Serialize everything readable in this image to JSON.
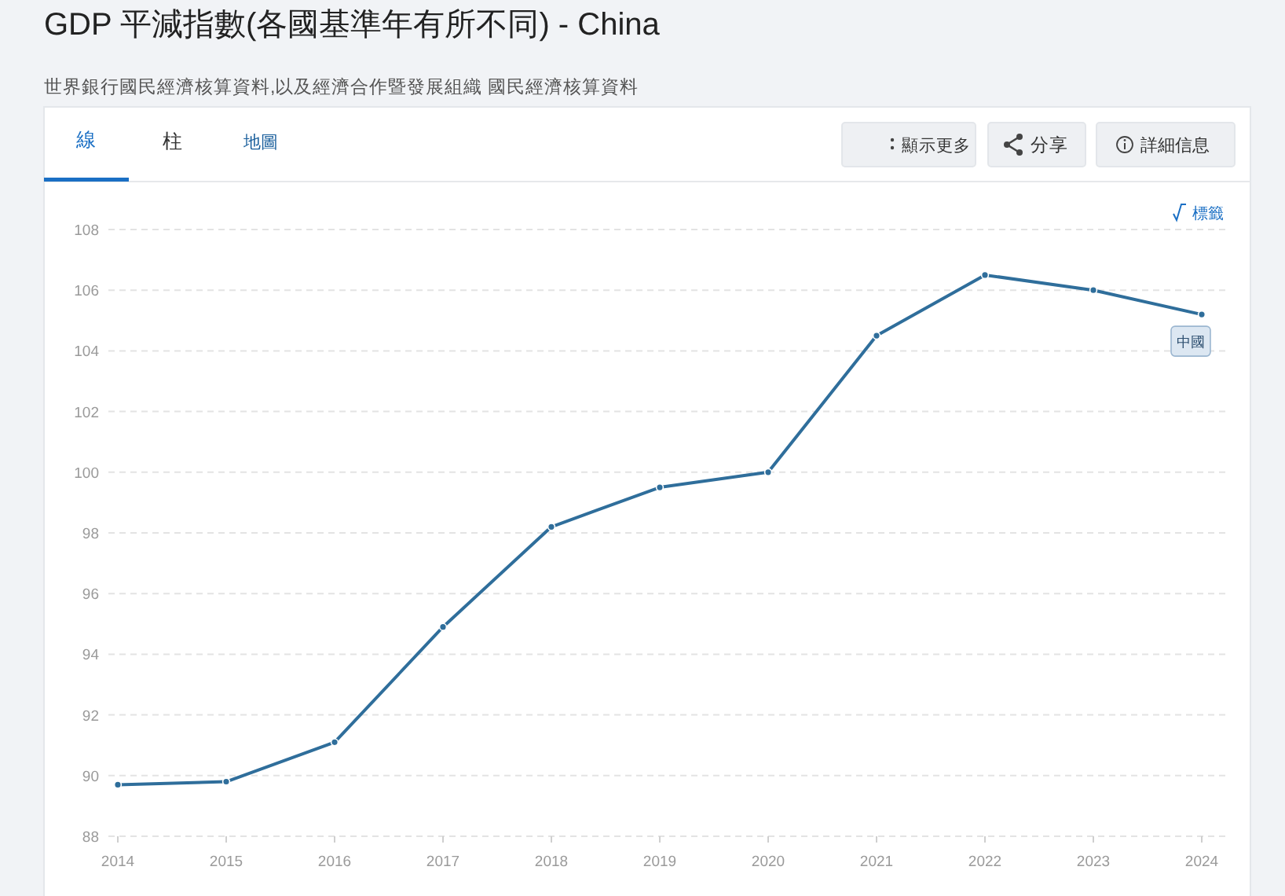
{
  "chart_data": {
    "type": "line",
    "title": "GDP 平減指數(各國基準年有所不同) - China",
    "subtitle": "世界銀行國民經濟核算資料,以及經濟合作暨發展組織 國民經濟核算資料",
    "annotations": [
      "線",
      "柱",
      "地圖",
      "顯示更多",
      "分享",
      "詳細信息",
      "標籤"
    ],
    "categories": [
      "2014",
      "2015",
      "2016",
      "2017",
      "2018",
      "2019",
      "2020",
      "2021",
      "2022",
      "2023",
      "2024"
    ],
    "series": [
      {
        "name": "中國",
        "color": "#2f6e9b",
        "values": [
          89.7,
          89.8,
          91.1,
          94.9,
          98.2,
          99.5,
          100.0,
          104.5,
          106.5,
          106.0,
          105.2
        ]
      }
    ],
    "ylim": [
      88,
      108
    ],
    "yticks": [
      88,
      90,
      92,
      94,
      96,
      98,
      100,
      102,
      104,
      106,
      108
    ],
    "grid": "y",
    "marker": "circle",
    "line_style": "solid"
  }
}
